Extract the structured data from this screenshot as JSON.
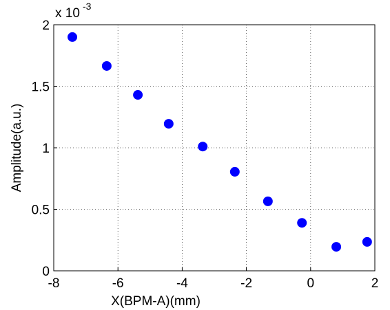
{
  "chart_data": {
    "type": "scatter",
    "x_label": "X(BPM-A)(mm)",
    "y_label": "Amplitude(a.u.)",
    "y_multiplier_base": "x 10",
    "y_multiplier_exponent": "-3",
    "x": [
      -7.42,
      -6.35,
      -5.38,
      -4.42,
      -3.36,
      -2.36,
      -1.33,
      -0.27,
      0.8,
      1.76
    ],
    "series": [
      {
        "color": "#0000ff",
        "values": [
          1.9,
          1.665,
          1.43,
          1.195,
          1.01,
          0.805,
          0.565,
          0.39,
          0.195,
          0.235
        ]
      }
    ],
    "xlim": [
      -8,
      2
    ],
    "xticks": [
      -8,
      -6,
      -4,
      -2,
      0,
      2
    ],
    "ylim": [
      0,
      2
    ],
    "yticks": [
      0,
      0.5,
      1,
      1.5,
      2
    ],
    "grid": true
  }
}
